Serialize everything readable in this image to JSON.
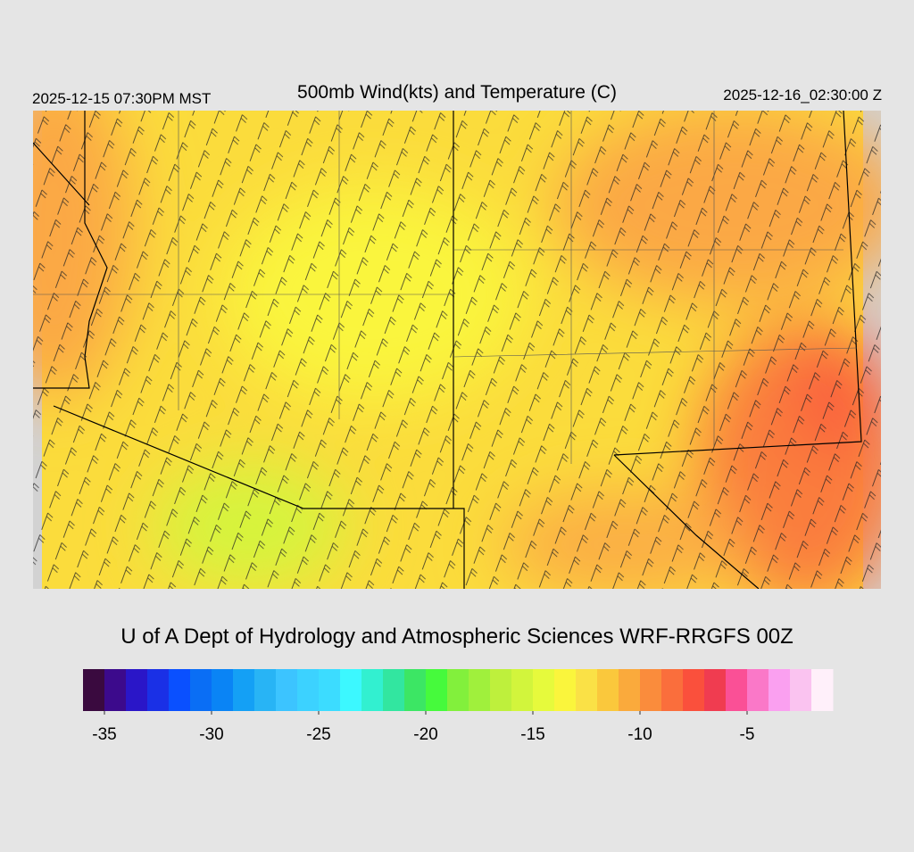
{
  "header": {
    "left": "2025-12-15 07:30PM MST",
    "title": "500mb Wind(kts) and Temperature (C)",
    "right": "2025-12-16_02:30:00 Z"
  },
  "credit": "U of A Dept of Hydrology and Atmospheric Sciences WRF-RRGFS 00Z",
  "colorbar": {
    "range": [
      -36,
      -1
    ],
    "colors": [
      "#3a0a3f",
      "#3c0a8c",
      "#2a16c8",
      "#1a30e6",
      "#0a50ff",
      "#0a6ef5",
      "#0a84f5",
      "#14a0f5",
      "#28b4f5",
      "#3cc4ff",
      "#3cd2ff",
      "#3cdcff",
      "#3cf8ff",
      "#32f0d0",
      "#32e6a0",
      "#3ce664",
      "#46fa3c",
      "#82f03c",
      "#a0f03c",
      "#bef03c",
      "#d2f53c",
      "#e6fa3c",
      "#faf53c",
      "#fae146",
      "#fac83c",
      "#faaa3c",
      "#fa8c3c",
      "#fa6e3c",
      "#fa503c",
      "#f03c50",
      "#fa5096",
      "#fa78c8",
      "#faa0f0",
      "#fac3f0",
      "#fff0fa"
    ],
    "ticks": [
      -35,
      -30,
      -25,
      -20,
      -15,
      -10,
      -5
    ]
  }
}
